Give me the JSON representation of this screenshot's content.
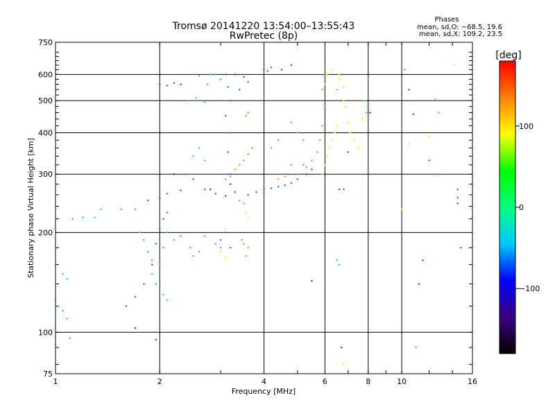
{
  "chart_data": {
    "type": "scatter",
    "title": "Tromsø 20141220 13:54:00–13:55:43",
    "subtitle": "RwPretec (8p)",
    "xlabel": "Frequency [MHz]",
    "ylabel": "Stationary phase Virtual Height [km]",
    "x_scale": "log",
    "y_scale": "log",
    "xlim": [
      1,
      16
    ],
    "ylim": [
      75,
      750
    ],
    "x_ticks": [
      1,
      2,
      4,
      6,
      8,
      10,
      16
    ],
    "x_tick_labels": [
      "1",
      "2",
      "4",
      "6",
      "8",
      "10",
      "16"
    ],
    "x_gridlines": [
      2,
      4,
      6,
      8,
      10
    ],
    "y_ticks": [
      75,
      100,
      200,
      300,
      400,
      500,
      600,
      750
    ],
    "y_tick_labels": [
      "75",
      "100",
      "200",
      "300",
      "400",
      "500",
      "600",
      "750"
    ],
    "y_gridlines": [
      100,
      200,
      300,
      400,
      500,
      600
    ],
    "grid": true,
    "info": {
      "heading": "Phases",
      "line1": "mean, sd,O: −68.5, 19.6",
      "line2": "mean, sd,X: 109.2, 23.5"
    },
    "colorbar": {
      "label": "[deg]",
      "min": -180,
      "max": 180,
      "ticks": [
        100,
        0,
        -100
      ],
      "tick_labels": [
        "100",
        "0",
        "−100"
      ],
      "colormap": "rainbow",
      "stops": [
        "#000000",
        "#3a0080",
        "#0000ff",
        "#00c8ff",
        "#00ff80",
        "#00ff00",
        "#ffff00",
        "#ff8000",
        "#ff0000"
      ]
    },
    "series": [
      {
        "color": "#00b4ff",
        "points": [
          [
            1.0,
            125
          ],
          [
            1.02,
            120
          ],
          [
            1.05,
            116
          ],
          [
            1.08,
            110
          ],
          [
            1.05,
            150
          ],
          [
            1.08,
            145
          ],
          [
            1.12,
            220
          ],
          [
            1.2,
            222
          ],
          [
            1.3,
            222
          ],
          [
            1.35,
            235
          ],
          [
            1.55,
            235
          ],
          [
            1.7,
            235
          ],
          [
            1.75,
            200
          ],
          [
            1.8,
            190
          ],
          [
            1.85,
            175
          ],
          [
            1.9,
            165
          ],
          [
            1.9,
            150
          ],
          [
            1.95,
            140
          ],
          [
            2.05,
            130
          ],
          [
            2.1,
            125
          ],
          [
            2.0,
            160
          ],
          [
            2.05,
            180
          ],
          [
            2.1,
            200
          ],
          [
            2.2,
            190
          ],
          [
            2.3,
            195
          ],
          [
            2.45,
            180
          ],
          [
            2.5,
            170
          ],
          [
            2.6,
            175
          ],
          [
            2.7,
            195
          ],
          [
            2.9,
            185
          ],
          [
            3.0,
            180
          ],
          [
            2.4,
            300
          ],
          [
            2.5,
            340
          ],
          [
            2.6,
            360
          ],
          [
            2.7,
            330
          ],
          [
            2.4,
            500
          ],
          [
            2.55,
            510
          ],
          [
            2.7,
            495
          ],
          [
            2.75,
            560
          ],
          [
            2.8,
            600
          ],
          [
            2.9,
            600
          ],
          [
            3.0,
            580
          ],
          [
            2.6,
            595
          ],
          [
            4.2,
            360
          ],
          [
            4.4,
            380
          ],
          [
            4.6,
            300
          ],
          [
            4.8,
            320
          ],
          [
            5.0,
            300
          ],
          [
            5.2,
            320
          ],
          [
            1.1,
            96
          ],
          [
            1.0,
            92
          ],
          [
            6.5,
            165
          ],
          [
            6.6,
            160
          ],
          [
            12.5,
            300
          ]
        ]
      },
      {
        "color": "#0050ff",
        "points": [
          [
            1.6,
            120
          ],
          [
            1.7,
            128
          ],
          [
            1.8,
            140
          ],
          [
            1.9,
            160
          ],
          [
            1.95,
            185
          ],
          [
            2.0,
            205
          ],
          [
            2.05,
            220
          ],
          [
            2.1,
            230
          ],
          [
            1.85,
            250
          ],
          [
            2.0,
            255
          ],
          [
            2.1,
            262
          ],
          [
            2.3,
            268
          ],
          [
            2.0,
            560
          ],
          [
            2.1,
            555
          ],
          [
            2.2,
            565
          ],
          [
            2.3,
            560
          ],
          [
            2.5,
            290
          ],
          [
            2.7,
            270
          ],
          [
            2.9,
            262
          ],
          [
            3.1,
            258
          ],
          [
            3.3,
            265
          ],
          [
            3.1,
            600
          ],
          [
            3.15,
            550
          ],
          [
            3.2,
            500
          ],
          [
            3.1,
            450
          ],
          [
            3.2,
            400
          ],
          [
            3.15,
            350
          ],
          [
            3.2,
            300
          ],
          [
            3.1,
            200
          ],
          [
            3.0,
            190
          ],
          [
            3.2,
            180
          ],
          [
            3.3,
            600
          ],
          [
            3.4,
            540
          ],
          [
            3.5,
            590
          ],
          [
            3.6,
            570
          ],
          [
            4.0,
            620
          ],
          [
            4.1,
            615
          ],
          [
            4.2,
            630
          ],
          [
            4.5,
            620
          ],
          [
            4.8,
            640
          ],
          [
            3.6,
            260
          ],
          [
            3.8,
            265
          ],
          [
            4.0,
            270
          ],
          [
            4.2,
            272
          ],
          [
            4.4,
            275
          ],
          [
            4.6,
            278
          ],
          [
            4.8,
            282
          ],
          [
            5.0,
            290
          ],
          [
            5.3,
            300
          ],
          [
            5.5,
            310
          ],
          [
            7.0,
            350
          ],
          [
            6.8,
            270
          ],
          [
            8.0,
            470
          ],
          [
            8.1,
            460
          ],
          [
            10.5,
            540
          ],
          [
            10.8,
            455
          ],
          [
            14.5,
            270
          ],
          [
            14.5,
            255
          ],
          [
            14.5,
            245
          ],
          [
            14.8,
            180
          ],
          [
            11.5,
            165
          ],
          [
            11.2,
            140
          ],
          [
            12.0,
            330
          ]
        ]
      },
      {
        "color": "#3a00c8",
        "points": [
          [
            1.7,
            103
          ],
          [
            2.0,
            100
          ],
          [
            1.95,
            95
          ],
          [
            6.7,
            90
          ],
          [
            6.6,
            270
          ],
          [
            5.5,
            143
          ],
          [
            2.2,
            300
          ],
          [
            2.8,
            270
          ],
          [
            3.2,
            280
          ]
        ]
      },
      {
        "color": "#ff7800",
        "points": [
          [
            3.1,
            290
          ],
          [
            3.2,
            295
          ],
          [
            3.3,
            310
          ],
          [
            3.4,
            320
          ],
          [
            3.5,
            330
          ],
          [
            3.6,
            345
          ],
          [
            3.7,
            360
          ],
          [
            3.4,
            250
          ],
          [
            3.5,
            245
          ],
          [
            3.45,
            190
          ],
          [
            3.5,
            185
          ],
          [
            3.6,
            180
          ],
          [
            3.55,
            170
          ],
          [
            3.6,
            460
          ],
          [
            3.55,
            450
          ],
          [
            4.4,
            290
          ],
          [
            4.6,
            295
          ],
          [
            5.0,
            300
          ],
          [
            5.3,
            315
          ],
          [
            5.5,
            330
          ],
          [
            5.7,
            350
          ],
          [
            5.8,
            380
          ],
          [
            5.9,
            420
          ],
          [
            6.0,
            480
          ],
          [
            5.9,
            540
          ],
          [
            6.0,
            600
          ],
          [
            4.8,
            430
          ],
          [
            5.0,
            400
          ],
          [
            5.2,
            380
          ],
          [
            10.2,
            620
          ],
          [
            12.8,
            460
          ],
          [
            11.0,
            90
          ]
        ]
      },
      {
        "color": "#ffe600",
        "points": [
          [
            5.9,
            300
          ],
          [
            6.0,
            320
          ],
          [
            6.1,
            340
          ],
          [
            6.2,
            360
          ],
          [
            6.3,
            380
          ],
          [
            6.4,
            400
          ],
          [
            6.5,
            420
          ],
          [
            6.0,
            560
          ],
          [
            6.1,
            600
          ],
          [
            6.3,
            620
          ],
          [
            6.6,
            600
          ],
          [
            6.8,
            550
          ],
          [
            6.9,
            480
          ],
          [
            7.0,
            430
          ],
          [
            7.1,
            400
          ],
          [
            7.3,
            380
          ],
          [
            7.5,
            360
          ],
          [
            7.7,
            440
          ],
          [
            7.9,
            480
          ],
          [
            6.5,
            540
          ],
          [
            6.6,
            580
          ],
          [
            6.8,
            500
          ],
          [
            3.55,
            230
          ],
          [
            3.6,
            220
          ],
          [
            3.0,
            175
          ],
          [
            3.1,
            168
          ],
          [
            10.0,
            235
          ],
          [
            10.5,
            370
          ],
          [
            12.0,
            390
          ],
          [
            14.2,
            640
          ],
          [
            6.8,
            80
          ]
        ]
      },
      {
        "color": "#00ff80",
        "points": [
          [
            7.8,
            500
          ],
          [
            7.9,
            460
          ],
          [
            12.5,
            505
          ],
          [
            6.5,
            540
          ]
        ]
      }
    ]
  }
}
